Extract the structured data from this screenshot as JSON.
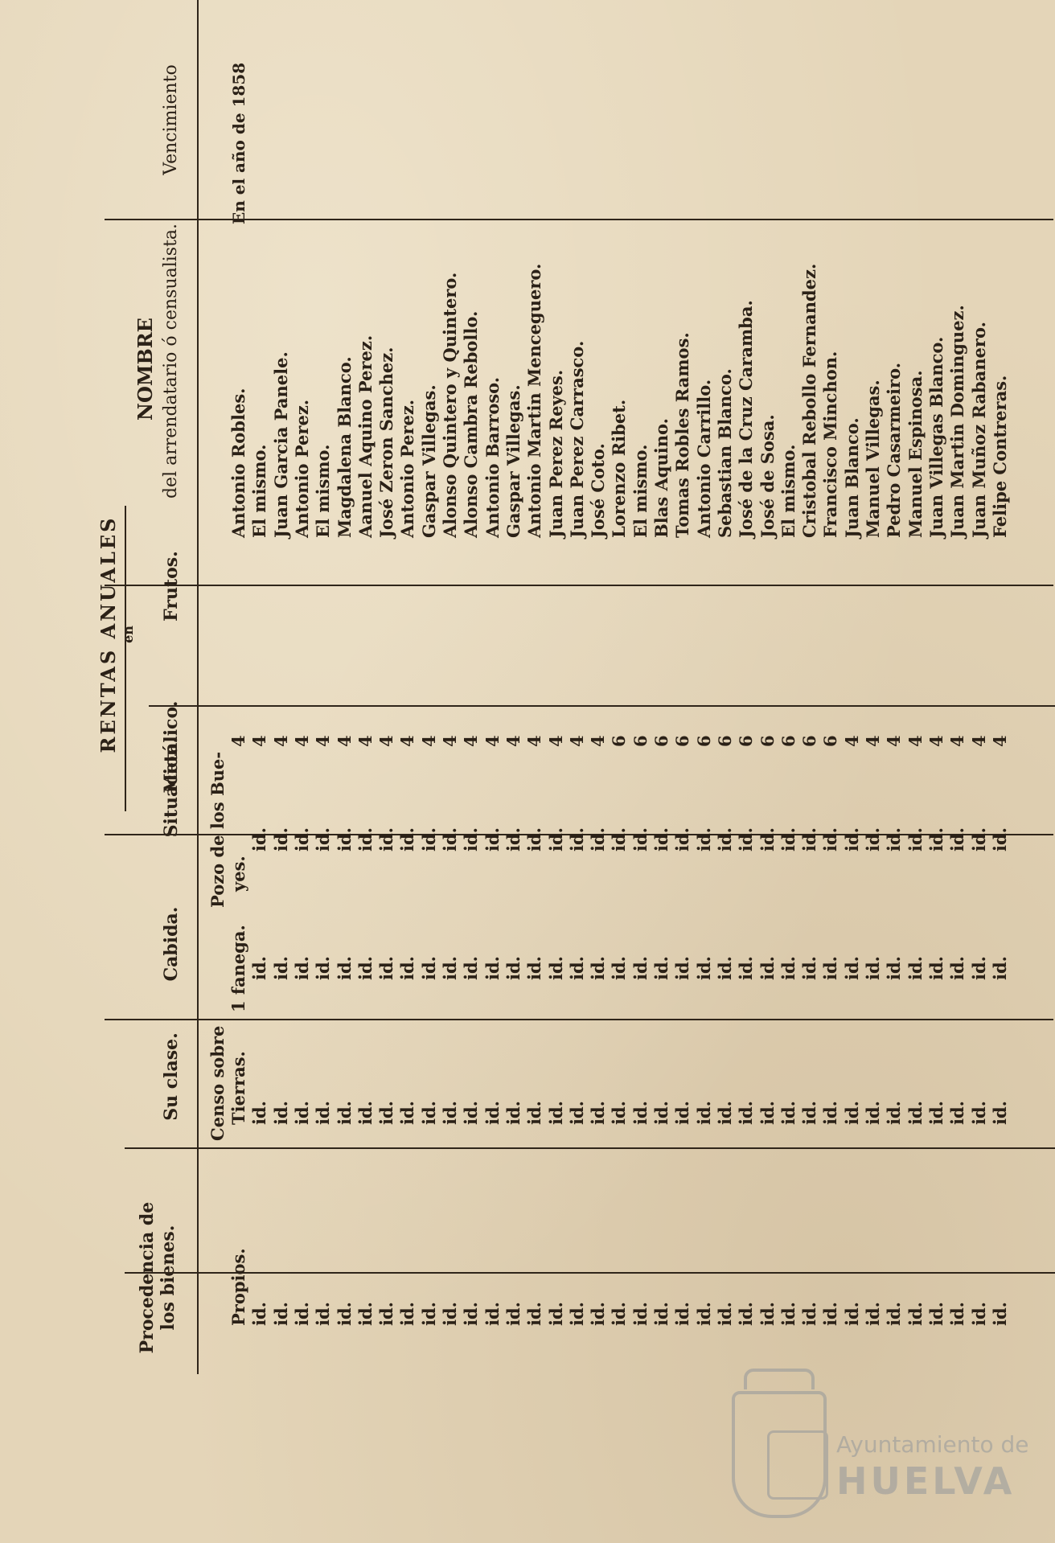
{
  "headers": {
    "procedencia": "Procedencia de los bienes.",
    "su_clase": "Su clase.",
    "cabida": "Cabida.",
    "situacion": "Situacion.",
    "rentas_title": "RENTAS ANUALES",
    "rentas_en": "en",
    "metalico": "Metálico.",
    "frutos": "Frutos.",
    "nombre_title": "NOMBRE",
    "nombre_sub": "del arrendatario ó censualista.",
    "vencimiento": "Vencimiento"
  },
  "first_row": {
    "procedencia": "Propios.",
    "clase_1": "Censo sobre",
    "clase_2": "Tierras.",
    "cabida": "1 fanega.",
    "situacion_1": "Pozo de los Bue-",
    "situacion_2": "yes.",
    "vencimiento": "En el año de 1858"
  },
  "rows": [
    {
      "proc": "Propios.",
      "clase": "",
      "cabida": "",
      "sit": "",
      "met": "4",
      "nombre": "Antonio Robles."
    },
    {
      "proc": "id.",
      "clase": "id.",
      "cabida": "id.",
      "sit": "id.",
      "met": "4",
      "nombre": "El mismo."
    },
    {
      "proc": "id.",
      "clase": "id.",
      "cabida": "id.",
      "sit": "id.",
      "met": "4",
      "nombre": "Juan Garcia Panele."
    },
    {
      "proc": "id.",
      "clase": "id.",
      "cabida": "id.",
      "sit": "id.",
      "met": "4",
      "nombre": "Antonio Perez."
    },
    {
      "proc": "id.",
      "clase": "id.",
      "cabida": "id.",
      "sit": "id.",
      "met": "4",
      "nombre": "El mismo."
    },
    {
      "proc": "id.",
      "clase": "id.",
      "cabida": "id.",
      "sit": "id.",
      "met": "4",
      "nombre": "Magdalena Blanco."
    },
    {
      "proc": "id.",
      "clase": "id.",
      "cabida": "id.",
      "sit": "id.",
      "met": "4",
      "nombre": "Aanuel Aquino Perez."
    },
    {
      "proc": "id.",
      "clase": "id.",
      "cabida": "id.",
      "sit": "id.",
      "met": "4",
      "nombre": "José Zeron Sanchez."
    },
    {
      "proc": "id.",
      "clase": "id.",
      "cabida": "id.",
      "sit": "id.",
      "met": "4",
      "nombre": "Antonio Perez."
    },
    {
      "proc": "id.",
      "clase": "id.",
      "cabida": "id.",
      "sit": "id.",
      "met": "4",
      "nombre": "Gaspar Villegas."
    },
    {
      "proc": "id.",
      "clase": "id.",
      "cabida": "id.",
      "sit": "id.",
      "met": "4",
      "nombre": "Alonso Quintero y Quintero."
    },
    {
      "proc": "id.",
      "clase": "id.",
      "cabida": "id.",
      "sit": "id.",
      "met": "4",
      "nombre": "Alonso Cambra Rebollo."
    },
    {
      "proc": "id.",
      "clase": "id.",
      "cabida": "id.",
      "sit": "id.",
      "met": "4",
      "nombre": "Antonio Barroso."
    },
    {
      "proc": "id.",
      "clase": "id.",
      "cabida": "id.",
      "sit": "id.",
      "met": "4",
      "nombre": "Gaspar Villegas."
    },
    {
      "proc": "id.",
      "clase": "id.",
      "cabida": "id.",
      "sit": "id.",
      "met": "4",
      "nombre": "Antonio Martin Menceguero."
    },
    {
      "proc": "id.",
      "clase": "id.",
      "cabida": "id.",
      "sit": "id.",
      "met": "4",
      "nombre": "Juan Perez Reyes."
    },
    {
      "proc": "id.",
      "clase": "id.",
      "cabida": "id.",
      "sit": "id.",
      "met": "4",
      "nombre": "Juan Perez Carrasco."
    },
    {
      "proc": "id.",
      "clase": "id.",
      "cabida": "id.",
      "sit": "id.",
      "met": "4",
      "nombre": "José Coto."
    },
    {
      "proc": "id.",
      "clase": "id.",
      "cabida": "id.",
      "sit": "id.",
      "met": "6",
      "nombre": "Lorenzo Ribet."
    },
    {
      "proc": "id.",
      "clase": "id.",
      "cabida": "id.",
      "sit": "id.",
      "met": "6",
      "nombre": "El mismo."
    },
    {
      "proc": "id.",
      "clase": "id.",
      "cabida": "id.",
      "sit": "id.",
      "met": "6",
      "nombre": "Blas Aquino."
    },
    {
      "proc": "id.",
      "clase": "id.",
      "cabida": "id.",
      "sit": "id.",
      "met": "6",
      "nombre": "Tomas Robles Ramos."
    },
    {
      "proc": "id.",
      "clase": "id.",
      "cabida": "id.",
      "sit": "id.",
      "met": "6",
      "nombre": "Antonio Carrillo."
    },
    {
      "proc": "id.",
      "clase": "id.",
      "cabida": "id.",
      "sit": "id.",
      "met": "6",
      "nombre": "Sebastian Blanco."
    },
    {
      "proc": "id.",
      "clase": "id.",
      "cabida": "id.",
      "sit": "id.",
      "met": "6",
      "nombre": "José de la Cruz Caramba."
    },
    {
      "proc": "id.",
      "clase": "id.",
      "cabida": "id.",
      "sit": "id.",
      "met": "6",
      "nombre": "José de Sosa."
    },
    {
      "proc": "id.",
      "clase": "id.",
      "cabida": "id.",
      "sit": "id.",
      "met": "6",
      "nombre": "El mismo."
    },
    {
      "proc": "id.",
      "clase": "id.",
      "cabida": "id.",
      "sit": "id.",
      "met": "6",
      "nombre": "Cristobal Rebollo Fernandez."
    },
    {
      "proc": "id.",
      "clase": "id.",
      "cabida": "id.",
      "sit": "id.",
      "met": "6",
      "nombre": "Francisco Minchon."
    },
    {
      "proc": "id.",
      "clase": "id.",
      "cabida": "id.",
      "sit": "id.",
      "met": "4",
      "nombre": "Juan Blanco."
    },
    {
      "proc": "id.",
      "clase": "id.",
      "cabida": "id.",
      "sit": "id.",
      "met": "4",
      "nombre": "Manuel Villegas."
    },
    {
      "proc": "id.",
      "clase": "id.",
      "cabida": "id.",
      "sit": "id.",
      "met": "4",
      "nombre": "Pedro Casarmeiro."
    },
    {
      "proc": "id.",
      "clase": "id.",
      "cabida": "id.",
      "sit": "id.",
      "met": "4",
      "nombre": "Manuel Espinosa."
    },
    {
      "proc": "id.",
      "clase": "id.",
      "cabida": "id.",
      "sit": "id.",
      "met": "4",
      "nombre": "Juan Villegas Blanco."
    },
    {
      "proc": "id.",
      "clase": "id.",
      "cabida": "id.",
      "sit": "id.",
      "met": "4",
      "nombre": "Juan Martin Dominguez."
    },
    {
      "proc": "id.",
      "clase": "id.",
      "cabida": "id.",
      "sit": "id.",
      "met": "4",
      "nombre": "Juan Muñoz Rabanero."
    },
    {
      "proc": "id.",
      "clase": "id.",
      "cabida": "id.",
      "sit": "id.",
      "met": "4",
      "nombre": "Felipe Contreras."
    }
  ],
  "watermark": {
    "line1": "Ayuntamiento de",
    "line2": "HUELVA"
  }
}
